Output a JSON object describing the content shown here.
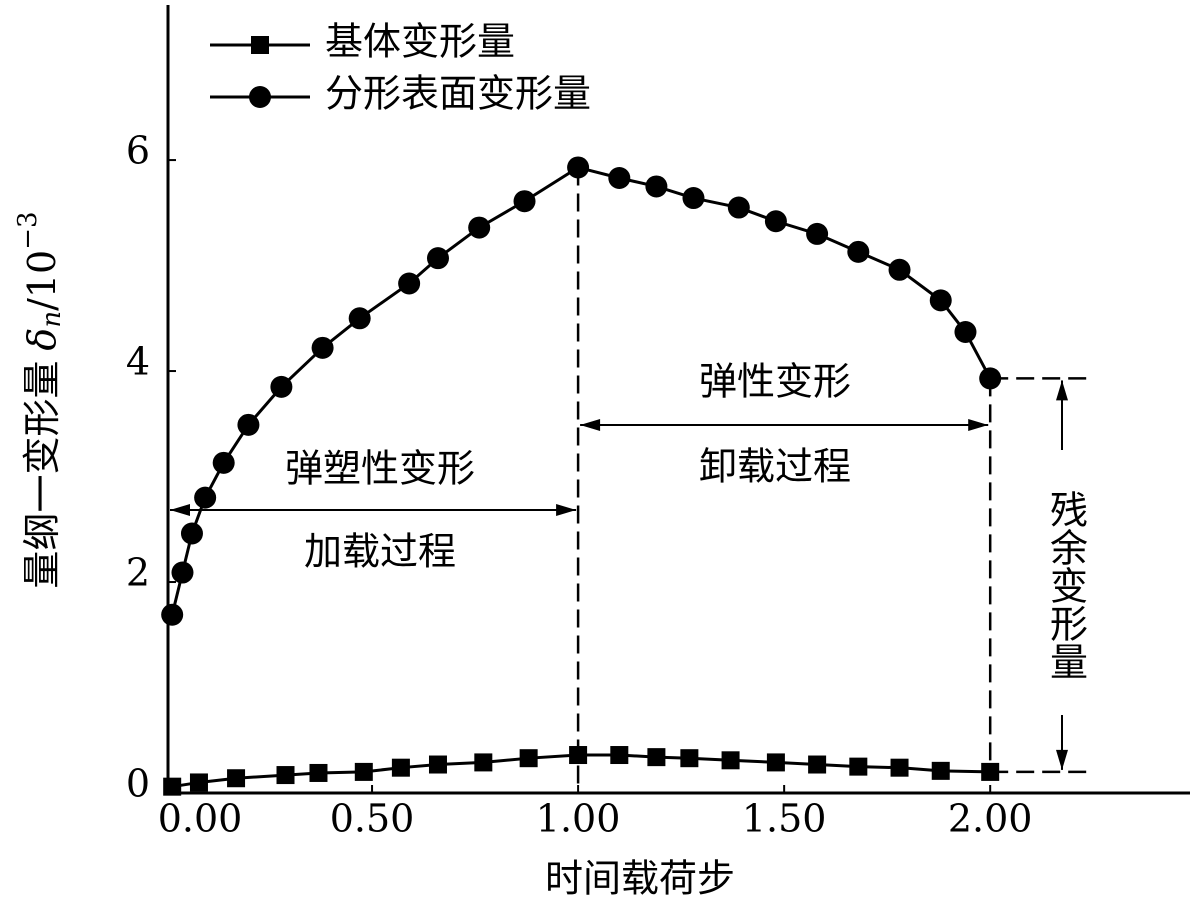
{
  "chart_data": {
    "type": "line",
    "xlabel": "时间载荷步",
    "ylabel": {
      "text": "量纲一变形量",
      "symbol": "δ",
      "subscript": "n",
      "unit": "/10",
      "exponent": "−3"
    },
    "xlim": [
      0,
      2.48
    ],
    "ylim": [
      0,
      7.47
    ],
    "xticks": [
      {
        "value": 0,
        "label": "0.00"
      },
      {
        "value": 0.5,
        "label": "0.50"
      },
      {
        "value": 1,
        "label": "1.00"
      },
      {
        "value": 1.5,
        "label": "1.50"
      },
      {
        "value": 2,
        "label": "2.00"
      }
    ],
    "yticks": [
      0,
      2,
      4,
      6
    ],
    "grid": false,
    "legend": "upper left",
    "series": [
      {
        "name": "基体变形量",
        "color": "#000000",
        "marker": "square",
        "x": [
          0.015,
          0.08,
          0.17,
          0.29,
          0.37,
          0.48,
          0.57,
          0.66,
          0.77,
          0.88,
          1.0,
          1.1,
          1.19,
          1.27,
          1.37,
          1.48,
          1.58,
          1.68,
          1.78,
          1.88,
          2.0
        ],
        "values": [
          0.06,
          0.1,
          0.14,
          0.17,
          0.19,
          0.2,
          0.24,
          0.27,
          0.29,
          0.33,
          0.36,
          0.36,
          0.34,
          0.33,
          0.31,
          0.29,
          0.27,
          0.25,
          0.24,
          0.21,
          0.2
        ]
      },
      {
        "name": "分形表面变形量",
        "color": "#000000",
        "marker": "circle",
        "x": [
          0.015,
          0.04,
          0.063,
          0.095,
          0.14,
          0.2,
          0.28,
          0.38,
          0.47,
          0.59,
          0.66,
          0.76,
          0.87,
          1.0,
          1.1,
          1.19,
          1.28,
          1.39,
          1.48,
          1.58,
          1.68,
          1.78,
          1.88,
          1.94,
          2.0
        ],
        "values": [
          1.69,
          2.09,
          2.46,
          2.8,
          3.13,
          3.49,
          3.85,
          4.22,
          4.5,
          4.83,
          5.07,
          5.36,
          5.61,
          5.93,
          5.83,
          5.75,
          5.64,
          5.55,
          5.42,
          5.3,
          5.13,
          4.96,
          4.67,
          4.37,
          3.93
        ]
      }
    ],
    "annotations": [
      "弹塑性变形",
      "加载过程",
      "弹性变形",
      "卸载过程",
      "残余变形量"
    ]
  }
}
